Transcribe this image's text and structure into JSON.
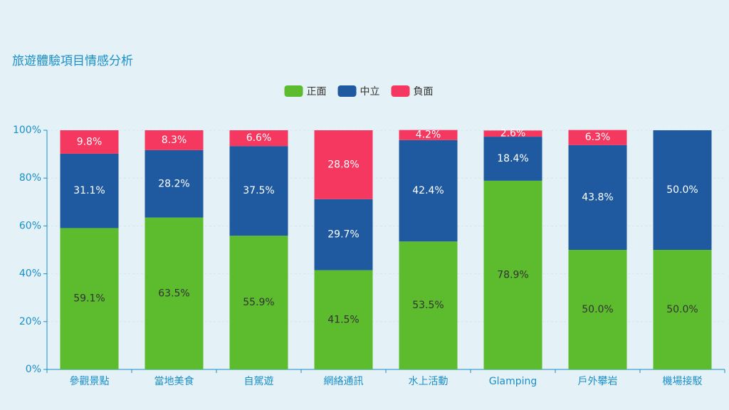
{
  "chart_data": {
    "type": "stacked-bar",
    "title": "旅遊體驗項目情感分析",
    "categories": [
      "參觀景點",
      "當地美食",
      "自駕遊",
      "網絡通訊",
      "水上活動",
      "Glamping",
      "戶外攀岩",
      "機場接駁"
    ],
    "series": [
      {
        "name": "正面",
        "color": "#5dbb2e",
        "values": [
          59.1,
          63.5,
          55.9,
          41.5,
          53.5,
          78.9,
          50.0,
          50.0
        ],
        "value_labels": [
          "59.1%",
          "63.5%",
          "55.9%",
          "41.5%",
          "53.5%",
          "78.9%",
          "50.0%",
          "50.0%"
        ]
      },
      {
        "name": "中立",
        "color": "#1f5aa0",
        "values": [
          31.1,
          28.2,
          37.5,
          29.7,
          42.4,
          18.4,
          43.8,
          50.0
        ],
        "value_labels": [
          "31.1%",
          "28.2%",
          "37.5%",
          "29.7%",
          "42.4%",
          "18.4%",
          "43.8%",
          "50.0%"
        ]
      },
      {
        "name": "負面",
        "color": "#f5385f",
        "values": [
          9.8,
          8.3,
          6.6,
          28.8,
          4.2,
          2.6,
          6.3,
          0
        ],
        "value_labels": [
          "9.8%",
          "8.3%",
          "6.6%",
          "28.8%",
          "4.2%",
          "2.6%",
          "6.3%",
          null
        ]
      }
    ],
    "ylim": [
      0,
      100
    ],
    "yticks": [
      {
        "value": 0,
        "label": "0%"
      },
      {
        "value": 20,
        "label": "20%"
      },
      {
        "value": 40,
        "label": "40%"
      },
      {
        "value": 60,
        "label": "60%"
      },
      {
        "value": 80,
        "label": "80%"
      },
      {
        "value": 100,
        "label": "100%"
      }
    ],
    "grid": true
  }
}
